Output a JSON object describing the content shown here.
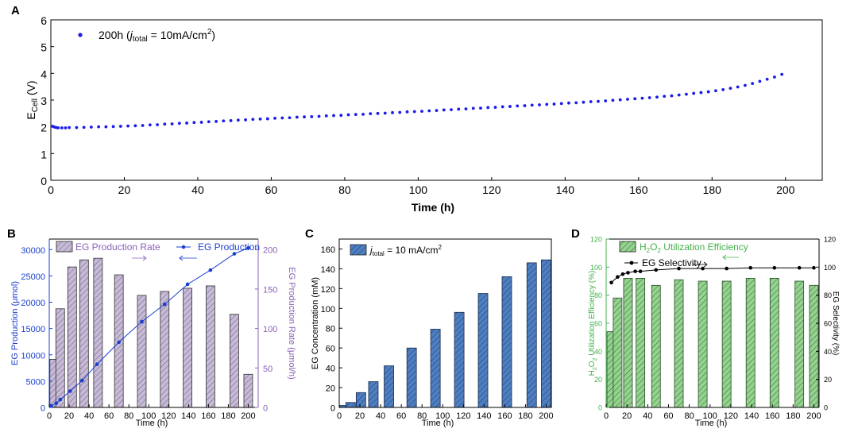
{
  "panel_labels": {
    "a": "A",
    "b": "B",
    "c": "C",
    "d": "D"
  },
  "colors": {
    "blue_point": "#1a1aee",
    "b_left_axis": "#1a3fd0",
    "b_right_axis": "#8a60b8",
    "b_bar_fill": "#c7bad6",
    "c_bar_fill": "#4f7fc0",
    "d_bar_fill": "#95d18f",
    "d_green_text": "#43b14a",
    "black": "#000000"
  },
  "chart_data": [
    {
      "panel": "A",
      "type": "scatter",
      "xlabel": "Time (h)",
      "ylabel_main": "E",
      "ylabel_sub": "Cell",
      "ylabel_unit": " (V)",
      "xlim": [
        0,
        210
      ],
      "ylim": [
        0,
        6
      ],
      "xticks": [
        0,
        20,
        40,
        60,
        80,
        100,
        120,
        140,
        160,
        180,
        200
      ],
      "yticks": [
        0,
        1,
        2,
        3,
        4,
        5,
        6
      ],
      "legend": {
        "pre": "200h (",
        "j": "j",
        "sub": "total",
        "mid": " = 10mA/cm",
        "sup": "2",
        "post": ")"
      },
      "x": [
        0.5,
        1,
        1.5,
        2,
        3,
        4,
        5,
        7,
        9,
        11,
        13,
        15,
        17,
        19,
        21,
        23,
        25,
        27,
        29,
        31,
        33,
        35,
        37,
        39,
        41,
        43,
        45,
        47,
        49,
        51,
        53,
        55,
        57,
        59,
        61,
        63,
        65,
        67,
        69,
        71,
        73,
        75,
        77,
        79,
        81,
        83,
        85,
        87,
        89,
        91,
        93,
        95,
        97,
        99,
        101,
        103,
        105,
        107,
        109,
        111,
        113,
        115,
        117,
        119,
        121,
        123,
        125,
        127,
        129,
        131,
        133,
        135,
        137,
        139,
        141,
        143,
        145,
        147,
        149,
        151,
        153,
        155,
        157,
        159,
        161,
        163,
        165,
        167,
        169,
        171,
        173,
        175,
        177,
        179,
        181,
        183,
        185,
        187,
        189,
        191,
        193,
        195,
        197,
        199
      ],
      "y": [
        2.02,
        1.99,
        1.97,
        1.96,
        1.96,
        1.96,
        1.97,
        1.97,
        1.98,
        1.99,
        2.0,
        2.0,
        2.01,
        2.02,
        2.03,
        2.04,
        2.05,
        2.07,
        2.08,
        2.1,
        2.11,
        2.13,
        2.14,
        2.16,
        2.17,
        2.19,
        2.2,
        2.22,
        2.23,
        2.25,
        2.26,
        2.28,
        2.29,
        2.3,
        2.32,
        2.33,
        2.34,
        2.36,
        2.37,
        2.38,
        2.39,
        2.41,
        2.42,
        2.43,
        2.45,
        2.46,
        2.47,
        2.49,
        2.5,
        2.51,
        2.53,
        2.54,
        2.56,
        2.57,
        2.58,
        2.6,
        2.61,
        2.63,
        2.64,
        2.66,
        2.67,
        2.69,
        2.7,
        2.72,
        2.73,
        2.75,
        2.76,
        2.78,
        2.79,
        2.81,
        2.82,
        2.84,
        2.85,
        2.87,
        2.89,
        2.9,
        2.92,
        2.94,
        2.95,
        2.97,
        2.99,
        3.01,
        3.03,
        3.05,
        3.07,
        3.09,
        3.11,
        3.14,
        3.16,
        3.19,
        3.22,
        3.25,
        3.28,
        3.31,
        3.35,
        3.39,
        3.44,
        3.49,
        3.55,
        3.62,
        3.7,
        3.78,
        3.86,
        3.96
      ]
    },
    {
      "panel": "B",
      "type": "bar",
      "xlabel": "Time (h)",
      "ylabel_left": "EG Production (μmol)",
      "ylabel_right": "EG Production Rate (μmol/h)",
      "xlim": [
        0,
        210
      ],
      "ylim_left": [
        0,
        32000
      ],
      "ylim_right": [
        0,
        213.33
      ],
      "xticks": [
        0,
        20,
        40,
        60,
        80,
        100,
        120,
        140,
        160,
        180,
        200
      ],
      "yticks_left": [
        0,
        5000,
        10000,
        15000,
        20000,
        25000,
        30000
      ],
      "yticks_right": [
        0,
        50,
        100,
        150,
        200
      ],
      "bar_times": [
        5,
        11,
        23,
        35,
        49,
        70,
        93,
        116,
        139,
        162,
        186,
        200
      ],
      "bar_values": [
        61,
        125,
        178,
        187,
        189,
        168,
        142,
        147,
        151,
        154,
        118,
        42
      ],
      "line_times": [
        2,
        7,
        11,
        21,
        33,
        48,
        70,
        93,
        116,
        139,
        162,
        186,
        200
      ],
      "line_values": [
        300,
        800,
        1500,
        3100,
        5100,
        8200,
        12400,
        16300,
        19600,
        23400,
        26100,
        29200,
        30300
      ],
      "legend_bar": "EG Production Rate",
      "legend_line": "EG Production"
    },
    {
      "panel": "C",
      "type": "bar",
      "xlabel": "Time (h)",
      "ylabel": "EG Concentration (mM)",
      "xlim": [
        0,
        205
      ],
      "ylim": [
        0,
        170
      ],
      "xticks": [
        0,
        20,
        40,
        60,
        80,
        100,
        120,
        140,
        160,
        180,
        200
      ],
      "yticks": [
        0,
        20,
        40,
        60,
        80,
        100,
        120,
        140,
        160
      ],
      "times": [
        5,
        11,
        21,
        33,
        48,
        70,
        93,
        116,
        139,
        162,
        186,
        200
      ],
      "values": [
        2,
        5,
        15,
        26,
        42,
        60,
        79,
        96,
        115,
        132,
        146,
        149
      ],
      "legend": {
        "j": "j",
        "sub": "total",
        "text": " = 10 mA/cm",
        "sup": "2"
      }
    },
    {
      "panel": "D",
      "type": "bar",
      "xlabel": "Time (h)",
      "ylabel_left_pre": "H",
      "ylabel_left_sub1": "2",
      "ylabel_left_mid": "O",
      "ylabel_left_sub2": "2",
      "ylabel_left_post": " Utilization Efficiency (%)",
      "ylabel_right": "EG Selectivity (%)",
      "xlim": [
        0,
        205
      ],
      "ylim": [
        0,
        120
      ],
      "xticks": [
        0,
        20,
        40,
        60,
        80,
        100,
        120,
        140,
        160,
        180,
        200
      ],
      "yticks": [
        0,
        20,
        40,
        60,
        80,
        100,
        120
      ],
      "bar_times": [
        5,
        11,
        21,
        33,
        48,
        70,
        93,
        116,
        139,
        162,
        186,
        200
      ],
      "bar_values": [
        54,
        78,
        92,
        92,
        87,
        91,
        90,
        90,
        92,
        92,
        90,
        87
      ],
      "line_times": [
        5,
        11,
        16,
        21,
        28,
        33,
        48,
        70,
        93,
        116,
        139,
        162,
        186,
        200
      ],
      "line_values": [
        89,
        93,
        95,
        96,
        97,
        97,
        98,
        99,
        99,
        99,
        99.5,
        99.5,
        99.5,
        99.5
      ],
      "legend_bar_pre": "H",
      "legend_bar_sub1": "2",
      "legend_bar_mid": "O",
      "legend_bar_sub2": "2",
      "legend_bar_post": " Utilization Efficiency",
      "legend_line": "EG Selectivity"
    }
  ]
}
